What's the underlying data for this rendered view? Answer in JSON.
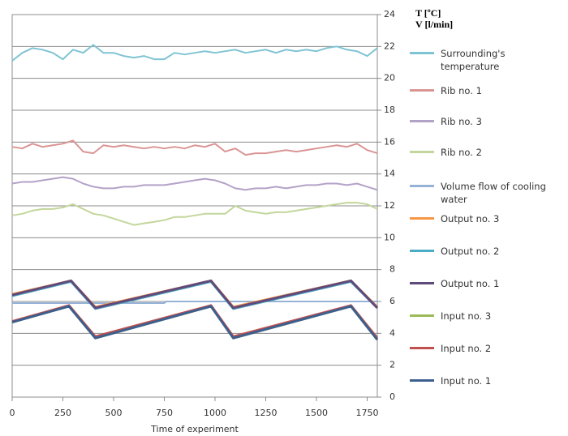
{
  "chart_data": {
    "type": "line",
    "x_label": "Time of experiment",
    "y_labels": [
      "T [ºC]",
      "V [l/min]"
    ],
    "xlim": [
      0,
      1800
    ],
    "xticks": [
      0,
      250,
      500,
      750,
      1000,
      1250,
      1500,
      1750
    ],
    "ylim": [
      0,
      24
    ],
    "yticks": [
      0,
      2,
      4,
      6,
      8,
      10,
      12,
      14,
      16,
      18,
      20,
      22,
      24
    ],
    "grid": true,
    "x": [
      0,
      50,
      100,
      150,
      200,
      250,
      300,
      350,
      400,
      450,
      500,
      550,
      600,
      650,
      700,
      750,
      800,
      850,
      900,
      950,
      1000,
      1050,
      1100,
      1150,
      1200,
      1250,
      1300,
      1350,
      1400,
      1450,
      1500,
      1550,
      1600,
      1650,
      1700,
      1750,
      1800
    ],
    "series": [
      {
        "name": "Surrounding's temperature",
        "color": "#7fc4d4",
        "width": 2,
        "values": [
          21.1,
          21.6,
          21.9,
          21.8,
          21.6,
          21.2,
          21.8,
          21.6,
          22.1,
          21.6,
          21.6,
          21.4,
          21.3,
          21.4,
          21.2,
          21.2,
          21.6,
          21.5,
          21.6,
          21.7,
          21.6,
          21.7,
          21.8,
          21.6,
          21.7,
          21.8,
          21.6,
          21.8,
          21.7,
          21.8,
          21.7,
          21.9,
          22.0,
          21.8,
          21.7,
          21.4,
          21.9
        ]
      },
      {
        "name": "Rib no. 1",
        "color": "#d99594",
        "width": 2,
        "values": [
          15.7,
          15.6,
          15.9,
          15.7,
          15.8,
          15.9,
          16.1,
          15.4,
          15.3,
          15.8,
          15.7,
          15.8,
          15.7,
          15.6,
          15.7,
          15.6,
          15.7,
          15.6,
          15.8,
          15.7,
          15.9,
          15.4,
          15.6,
          15.2,
          15.3,
          15.3,
          15.4,
          15.5,
          15.4,
          15.5,
          15.6,
          15.7,
          15.8,
          15.7,
          15.9,
          15.5,
          15.3
        ]
      },
      {
        "name": "Rib no. 3",
        "color": "#b3a2c7",
        "width": 2,
        "values": [
          13.4,
          13.5,
          13.5,
          13.6,
          13.7,
          13.8,
          13.7,
          13.4,
          13.2,
          13.1,
          13.1,
          13.2,
          13.2,
          13.3,
          13.3,
          13.3,
          13.4,
          13.5,
          13.6,
          13.7,
          13.6,
          13.4,
          13.1,
          13.0,
          13.1,
          13.1,
          13.2,
          13.1,
          13.2,
          13.3,
          13.3,
          13.4,
          13.4,
          13.3,
          13.4,
          13.2,
          13.0
        ]
      },
      {
        "name": "Rib no. 2",
        "color": "#c3d69b",
        "width": 2,
        "values": [
          11.4,
          11.5,
          11.7,
          11.8,
          11.8,
          11.9,
          12.1,
          11.8,
          11.5,
          11.4,
          11.2,
          11.0,
          10.8,
          10.9,
          11.0,
          11.1,
          11.3,
          11.3,
          11.4,
          11.5,
          11.5,
          11.5,
          12.0,
          11.7,
          11.6,
          11.5,
          11.6,
          11.6,
          11.7,
          11.8,
          11.9,
          12.0,
          12.1,
          12.2,
          12.2,
          12.1,
          11.8
        ]
      },
      {
        "name": "Volume flow of cooling water",
        "color": "#95b3d7",
        "width": 2,
        "x": [
          0,
          750,
          760,
          1800
        ],
        "values": [
          5.9,
          5.9,
          6.0,
          6.0
        ]
      },
      {
        "name": "Output no. 3",
        "color": "#f79646",
        "width": 3,
        "x": [
          0,
          290,
          410,
          980,
          1090,
          1670,
          1800
        ],
        "values": [
          6.45,
          7.3,
          5.65,
          7.3,
          5.65,
          7.3,
          5.65
        ]
      },
      {
        "name": "Output no. 2",
        "color": "#4bacc6",
        "width": 3,
        "x": [
          0,
          290,
          410,
          980,
          1090,
          1670,
          1800
        ],
        "values": [
          6.35,
          7.25,
          5.55,
          7.25,
          5.55,
          7.25,
          5.6
        ]
      },
      {
        "name": "Output no. 1",
        "color": "#604a7b",
        "width": 3,
        "x": [
          0,
          290,
          410,
          980,
          1090,
          1670,
          1800
        ],
        "values": [
          6.4,
          7.3,
          5.6,
          7.3,
          5.6,
          7.3,
          5.6
        ]
      },
      {
        "name": "Input no. 3",
        "color": "#9bbb59",
        "width": 3,
        "x": [
          0,
          280,
          410,
          980,
          1090,
          1670,
          1800
        ],
        "values": [
          4.7,
          5.7,
          3.7,
          5.7,
          3.7,
          5.7,
          3.6
        ]
      },
      {
        "name": "Input no. 2",
        "color": "#c0504d",
        "width": 3,
        "x": [
          0,
          280,
          410,
          980,
          1090,
          1670,
          1800
        ],
        "values": [
          4.75,
          5.75,
          3.8,
          5.75,
          3.8,
          5.75,
          3.7
        ]
      },
      {
        "name": "Input no. 1",
        "color": "#3c5f8f",
        "width": 3,
        "x": [
          0,
          280,
          410,
          980,
          1090,
          1670,
          1800
        ],
        "values": [
          4.7,
          5.7,
          3.7,
          5.7,
          3.7,
          5.7,
          3.6
        ]
      }
    ]
  }
}
